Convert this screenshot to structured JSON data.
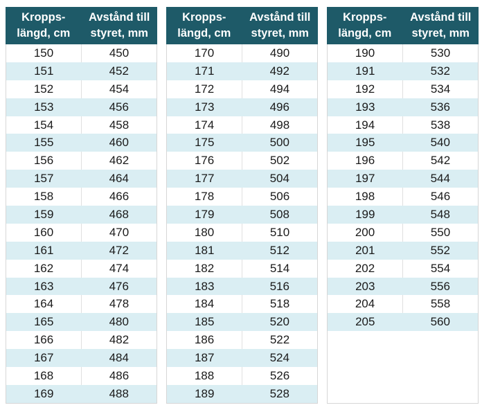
{
  "colors": {
    "header_background": "#1e5a68",
    "header_text": "#ffffff",
    "band_row": "#daeef3",
    "table_border": "#d6d6d6",
    "body_text": "#1a1a1a"
  },
  "header": {
    "col1_line1": "Kropps-",
    "col1_line2": "längd, cm",
    "col2_line1": "Avstånd till",
    "col2_line2": "styret, mm"
  },
  "tables": [
    {
      "rows": [
        [
          150,
          450
        ],
        [
          151,
          452
        ],
        [
          152,
          454
        ],
        [
          153,
          456
        ],
        [
          154,
          458
        ],
        [
          155,
          460
        ],
        [
          156,
          462
        ],
        [
          157,
          464
        ],
        [
          158,
          466
        ],
        [
          159,
          468
        ],
        [
          160,
          470
        ],
        [
          161,
          472
        ],
        [
          162,
          474
        ],
        [
          163,
          476
        ],
        [
          164,
          478
        ],
        [
          165,
          480
        ],
        [
          166,
          482
        ],
        [
          167,
          484
        ],
        [
          168,
          486
        ],
        [
          169,
          488
        ]
      ]
    },
    {
      "rows": [
        [
          170,
          490
        ],
        [
          171,
          492
        ],
        [
          172,
          494
        ],
        [
          173,
          496
        ],
        [
          174,
          498
        ],
        [
          175,
          500
        ],
        [
          176,
          502
        ],
        [
          177,
          504
        ],
        [
          178,
          506
        ],
        [
          179,
          508
        ],
        [
          180,
          510
        ],
        [
          181,
          512
        ],
        [
          182,
          514
        ],
        [
          183,
          516
        ],
        [
          184,
          518
        ],
        [
          185,
          520
        ],
        [
          186,
          522
        ],
        [
          187,
          524
        ],
        [
          188,
          526
        ],
        [
          189,
          528
        ]
      ]
    },
    {
      "rows": [
        [
          190,
          530
        ],
        [
          191,
          532
        ],
        [
          192,
          534
        ],
        [
          193,
          536
        ],
        [
          194,
          538
        ],
        [
          195,
          540
        ],
        [
          196,
          542
        ],
        [
          197,
          544
        ],
        [
          198,
          546
        ],
        [
          199,
          548
        ],
        [
          200,
          550
        ],
        [
          201,
          552
        ],
        [
          202,
          554
        ],
        [
          203,
          556
        ],
        [
          204,
          558
        ],
        [
          205,
          560
        ]
      ]
    }
  ]
}
